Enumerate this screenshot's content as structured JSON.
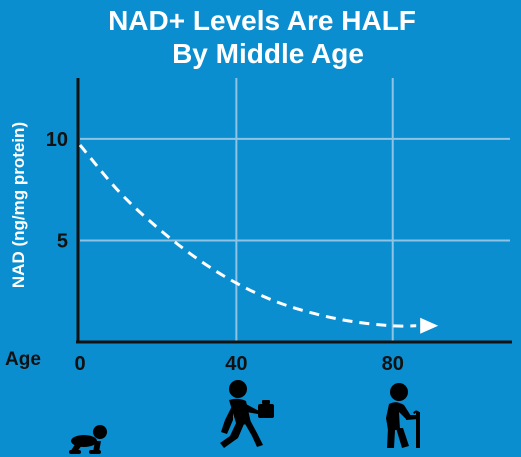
{
  "colors": {
    "background": "#0a8ed0",
    "grid": "#8fc3e3",
    "axis": "#111111",
    "curve": "#ffffff",
    "title": "#ffffff",
    "tick": "#111111",
    "icons": "#000000"
  },
  "chart_data": {
    "type": "line",
    "title_line1": "NAD+ Levels Are HALF",
    "title_line2": "By Middle Age",
    "xlabel": "Age",
    "ylabel": "NAD (ng/mg protein)",
    "xlim": [
      0,
      110
    ],
    "ylim": [
      0,
      13
    ],
    "xticks": [
      "0",
      "40",
      "80"
    ],
    "yticks": [
      "10",
      "5"
    ],
    "grid": true,
    "line_style": "dashed",
    "arrow_at_end": true,
    "series": [
      {
        "x": [
          0,
          10,
          20,
          30,
          40,
          50,
          60,
          70,
          80,
          86
        ],
        "y": [
          9.7,
          7.4,
          5.6,
          4.1,
          2.9,
          2.0,
          1.4,
          1.0,
          0.8,
          0.8
        ]
      }
    ]
  },
  "icons": [
    "baby-crawling-icon",
    "adult-walking-briefcase-icon",
    "elderly-cane-icon"
  ]
}
